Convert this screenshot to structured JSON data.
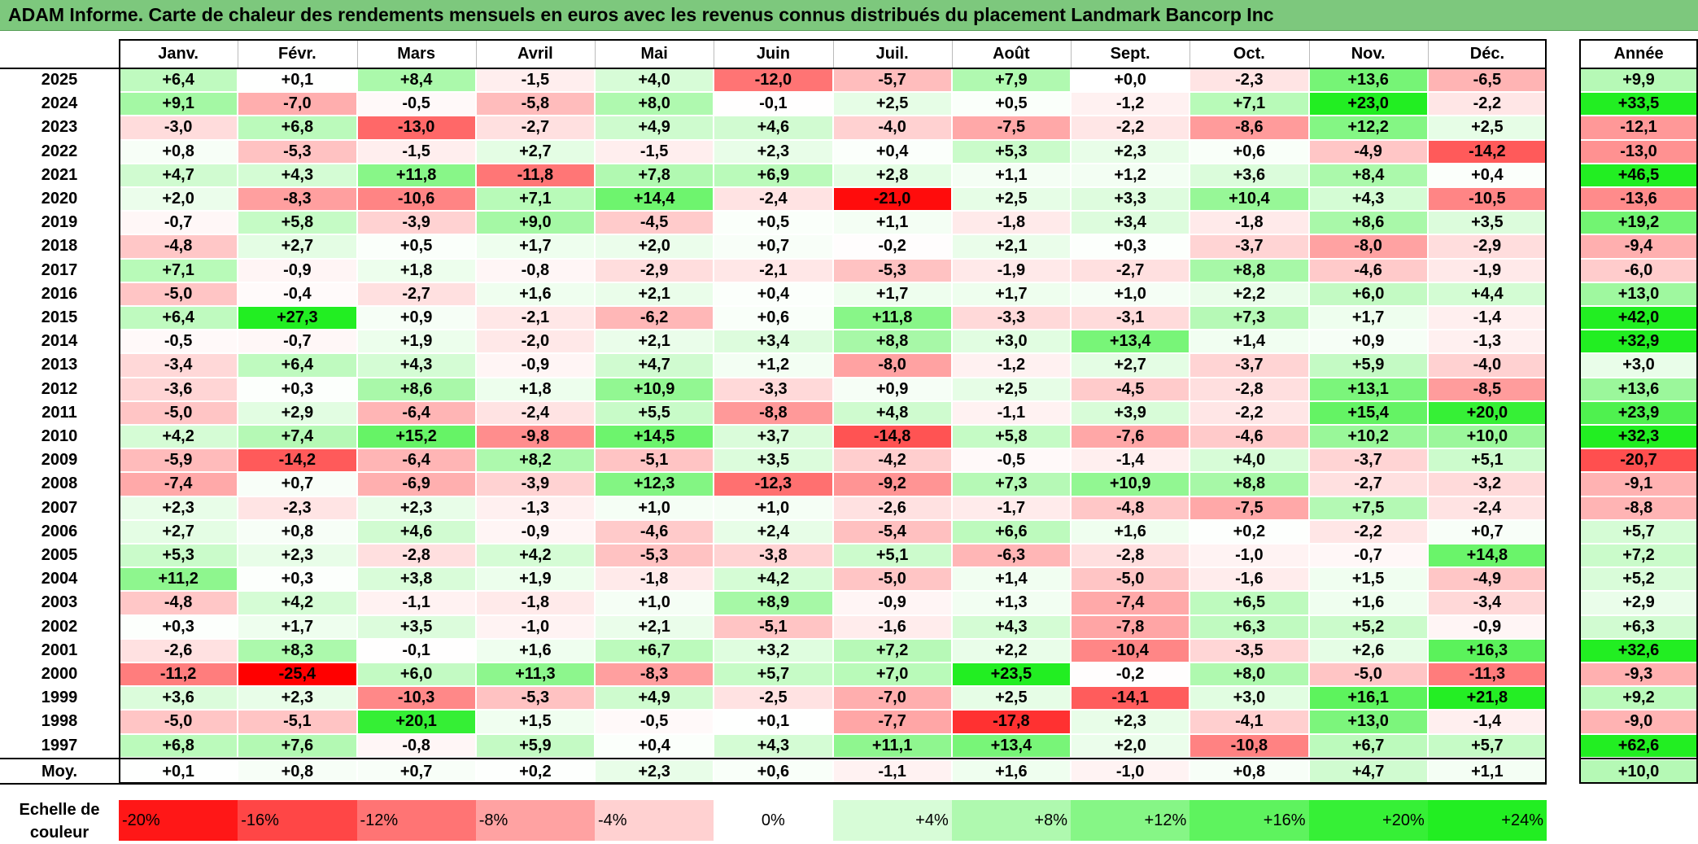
{
  "title": "ADAM Informe. Carte de chaleur des rendements mensuels en euros avec les revenus connus distribués du placement Landmark Bancorp Inc",
  "colors": {
    "title_bar": "#7dc87d",
    "negative_max": "#ff0000",
    "neutral": "#ffffff",
    "positive_max": "#22ee22"
  },
  "chart_data": {
    "type": "heatmap",
    "title": "ADAM Informe. Carte de chaleur des rendements mensuels en euros avec les revenus connus distribués du placement Landmark Bancorp Inc",
    "columns": [
      "Janv.",
      "Févr.",
      "Mars",
      "Avril",
      "Mai",
      "Juin",
      "Juil.",
      "Août",
      "Sept.",
      "Oct.",
      "Nov.",
      "Déc."
    ],
    "annual_column": "Année",
    "rows": [
      {
        "year": "2025",
        "values": [
          "+6,4",
          "+0,1",
          "+8,4",
          "-1,5",
          "+4,0",
          "-12,0",
          "-5,7",
          "+7,9",
          "+0,0",
          "-2,3",
          "+13,6",
          "-6,5"
        ],
        "annual": "+9,9"
      },
      {
        "year": "2024",
        "values": [
          "+9,1",
          "-7,0",
          "-0,5",
          "-5,8",
          "+8,0",
          "-0,1",
          "+2,5",
          "+0,5",
          "-1,2",
          "+7,1",
          "+23,0",
          "-2,2"
        ],
        "annual": "+33,5"
      },
      {
        "year": "2023",
        "values": [
          "-3,0",
          "+6,8",
          "-13,0",
          "-2,7",
          "+4,9",
          "+4,6",
          "-4,0",
          "-7,5",
          "-2,2",
          "-8,6",
          "+12,2",
          "+2,5"
        ],
        "annual": "-12,1"
      },
      {
        "year": "2022",
        "values": [
          "+0,8",
          "-5,3",
          "-1,5",
          "+2,7",
          "-1,5",
          "+2,3",
          "+0,4",
          "+5,3",
          "+2,3",
          "+0,6",
          "-4,9",
          "-14,2"
        ],
        "annual": "-13,0"
      },
      {
        "year": "2021",
        "values": [
          "+4,7",
          "+4,3",
          "+11,8",
          "-11,8",
          "+7,8",
          "+6,9",
          "+2,8",
          "+1,1",
          "+1,2",
          "+3,6",
          "+8,4",
          "+0,4"
        ],
        "annual": "+46,5"
      },
      {
        "year": "2020",
        "values": [
          "+2,0",
          "-8,3",
          "-10,6",
          "+7,1",
          "+14,4",
          "-2,4",
          "-21,0",
          "+2,5",
          "+3,3",
          "+10,4",
          "+4,3",
          "-10,5"
        ],
        "annual": "-13,6"
      },
      {
        "year": "2019",
        "values": [
          "-0,7",
          "+5,8",
          "-3,9",
          "+9,0",
          "-4,5",
          "+0,5",
          "+1,1",
          "-1,8",
          "+3,4",
          "-1,8",
          "+8,6",
          "+3,5"
        ],
        "annual": "+19,2"
      },
      {
        "year": "2018",
        "values": [
          "-4,8",
          "+2,7",
          "+0,5",
          "+1,7",
          "+2,0",
          "+0,7",
          "-0,2",
          "+2,1",
          "+0,3",
          "-3,7",
          "-8,0",
          "-2,9"
        ],
        "annual": "-9,4"
      },
      {
        "year": "2017",
        "values": [
          "+7,1",
          "-0,9",
          "+1,8",
          "-0,8",
          "-2,9",
          "-2,1",
          "-5,3",
          "-1,9",
          "-2,7",
          "+8,8",
          "-4,6",
          "-1,9"
        ],
        "annual": "-6,0"
      },
      {
        "year": "2016",
        "values": [
          "-5,0",
          "-0,4",
          "-2,7",
          "+1,6",
          "+2,1",
          "+0,4",
          "+1,7",
          "+1,7",
          "+1,0",
          "+2,2",
          "+6,0",
          "+4,4"
        ],
        "annual": "+13,0"
      },
      {
        "year": "2015",
        "values": [
          "+6,4",
          "+27,3",
          "+0,9",
          "-2,1",
          "-6,2",
          "+0,6",
          "+11,8",
          "-3,3",
          "-3,1",
          "+7,3",
          "+1,7",
          "-1,4"
        ],
        "annual": "+42,0"
      },
      {
        "year": "2014",
        "values": [
          "-0,5",
          "-0,7",
          "+1,9",
          "-2,0",
          "+2,1",
          "+3,4",
          "+8,8",
          "+3,0",
          "+13,4",
          "+1,4",
          "+0,9",
          "-1,3"
        ],
        "annual": "+32,9"
      },
      {
        "year": "2013",
        "values": [
          "-3,4",
          "+6,4",
          "+4,3",
          "-0,9",
          "+4,7",
          "+1,2",
          "-8,0",
          "-1,2",
          "+2,7",
          "-3,7",
          "+5,9",
          "-4,0"
        ],
        "annual": "+3,0"
      },
      {
        "year": "2012",
        "values": [
          "-3,6",
          "+0,3",
          "+8,6",
          "+1,8",
          "+10,9",
          "-3,3",
          "+0,9",
          "+2,5",
          "-4,5",
          "-2,8",
          "+13,1",
          "-8,5"
        ],
        "annual": "+13,6"
      },
      {
        "year": "2011",
        "values": [
          "-5,0",
          "+2,9",
          "-6,4",
          "-2,4",
          "+5,5",
          "-8,8",
          "+4,8",
          "-1,1",
          "+3,9",
          "-2,2",
          "+15,4",
          "+20,0"
        ],
        "annual": "+23,9"
      },
      {
        "year": "2010",
        "values": [
          "+4,2",
          "+7,4",
          "+15,2",
          "-9,8",
          "+14,5",
          "+3,7",
          "-14,8",
          "+5,8",
          "-7,6",
          "-4,6",
          "+10,2",
          "+10,0"
        ],
        "annual": "+32,3"
      },
      {
        "year": "2009",
        "values": [
          "-5,9",
          "-14,2",
          "-6,4",
          "+8,2",
          "-5,1",
          "+3,5",
          "-4,2",
          "-0,5",
          "-1,4",
          "+4,0",
          "-3,7",
          "+5,1"
        ],
        "annual": "-20,7"
      },
      {
        "year": "2008",
        "values": [
          "-7,4",
          "+0,7",
          "-6,9",
          "-3,9",
          "+12,3",
          "-12,3",
          "-9,2",
          "+7,3",
          "+10,9",
          "+8,8",
          "-2,7",
          "-3,2"
        ],
        "annual": "-9,1"
      },
      {
        "year": "2007",
        "values": [
          "+2,3",
          "-2,3",
          "+2,3",
          "-1,3",
          "+1,0",
          "+1,0",
          "-2,6",
          "-1,7",
          "-4,8",
          "-7,5",
          "+7,5",
          "-2,4"
        ],
        "annual": "-8,8"
      },
      {
        "year": "2006",
        "values": [
          "+2,7",
          "+0,8",
          "+4,6",
          "-0,9",
          "-4,6",
          "+2,4",
          "-5,4",
          "+6,6",
          "+1,6",
          "+0,2",
          "-2,2",
          "+0,7"
        ],
        "annual": "+5,7"
      },
      {
        "year": "2005",
        "values": [
          "+5,3",
          "+2,3",
          "-2,8",
          "+4,2",
          "-5,3",
          "-3,8",
          "+5,1",
          "-6,3",
          "-2,8",
          "-1,0",
          "-0,7",
          "+14,8"
        ],
        "annual": "+7,2"
      },
      {
        "year": "2004",
        "values": [
          "+11,2",
          "+0,3",
          "+3,8",
          "+1,9",
          "-1,8",
          "+4,2",
          "-5,0",
          "+1,4",
          "-5,0",
          "-1,6",
          "+1,5",
          "-4,9"
        ],
        "annual": "+5,2"
      },
      {
        "year": "2003",
        "values": [
          "-4,8",
          "+4,2",
          "-1,1",
          "-1,8",
          "+1,0",
          "+8,9",
          "-0,9",
          "+1,3",
          "-7,4",
          "+6,5",
          "+1,6",
          "-3,4"
        ],
        "annual": "+2,9"
      },
      {
        "year": "2002",
        "values": [
          "+0,3",
          "+1,7",
          "+3,5",
          "-1,0",
          "+2,1",
          "-5,1",
          "-1,6",
          "+4,3",
          "-7,8",
          "+6,3",
          "+5,2",
          "-0,9"
        ],
        "annual": "+6,3"
      },
      {
        "year": "2001",
        "values": [
          "-2,6",
          "+8,3",
          "-0,1",
          "+1,6",
          "+6,7",
          "+3,2",
          "+7,2",
          "+2,2",
          "-10,4",
          "-3,5",
          "+2,6",
          "+16,3"
        ],
        "annual": "+32,6"
      },
      {
        "year": "2000",
        "values": [
          "-11,2",
          "-25,4",
          "+6,0",
          "+11,3",
          "-8,3",
          "+5,7",
          "+7,0",
          "+23,5",
          "-0,2",
          "+8,0",
          "-5,0",
          "-11,3"
        ],
        "annual": "-9,3"
      },
      {
        "year": "1999",
        "values": [
          "+3,6",
          "+2,3",
          "-10,3",
          "-5,3",
          "+4,9",
          "-2,5",
          "-7,0",
          "+2,5",
          "-14,1",
          "+3,0",
          "+16,1",
          "+21,8"
        ],
        "annual": "+9,2"
      },
      {
        "year": "1998",
        "values": [
          "-5,0",
          "-5,1",
          "+20,1",
          "+1,5",
          "-0,5",
          "+0,1",
          "-7,7",
          "-17,8",
          "+2,3",
          "-4,1",
          "+13,0",
          "-1,4"
        ],
        "annual": "-9,0"
      },
      {
        "year": "1997",
        "values": [
          "+6,8",
          "+7,6",
          "-0,8",
          "+5,9",
          "+0,4",
          "+4,3",
          "+11,1",
          "+13,4",
          "+2,0",
          "-10,8",
          "+6,7",
          "+5,7"
        ],
        "annual": "+62,6"
      }
    ],
    "average": {
      "label": "Moy.",
      "values": [
        "+0,1",
        "+0,8",
        "+0,7",
        "+0,2",
        "+2,3",
        "+0,6",
        "-1,1",
        "+1,6",
        "-1,0",
        "+0,8",
        "+4,7",
        "+1,1"
      ],
      "annual": "+10,0"
    },
    "color_scale": {
      "label_line1": "Echelle de",
      "label_line2": "couleur",
      "stops": [
        "-20%",
        "-16%",
        "-12%",
        "-8%",
        "-4%",
        "0%",
        "+4%",
        "+8%",
        "+12%",
        "+16%",
        "+20%",
        "+24%"
      ]
    }
  }
}
